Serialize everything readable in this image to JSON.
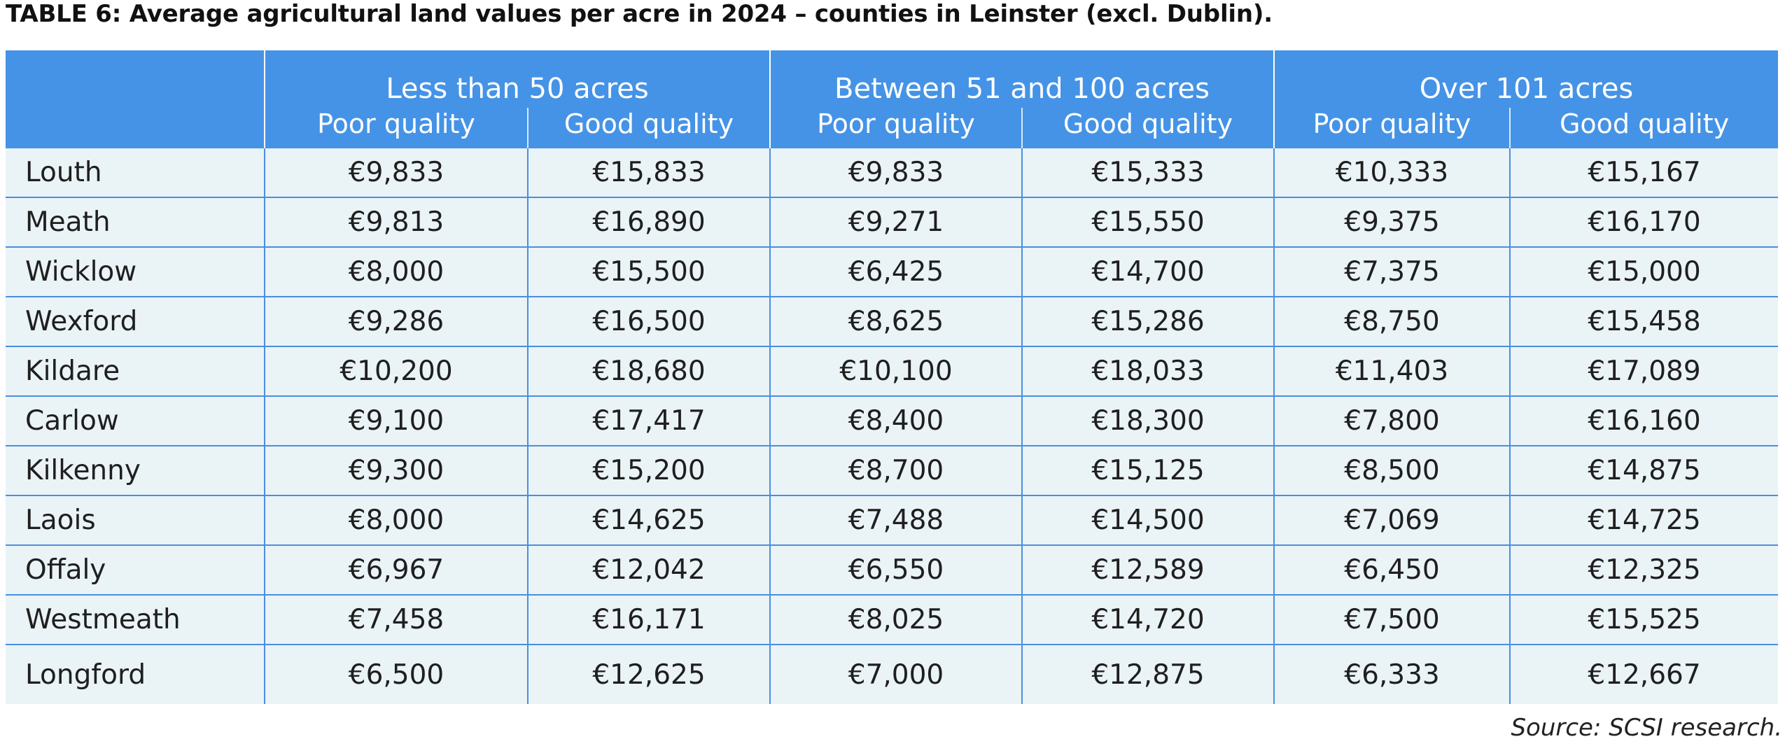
{
  "title": "TABLE 6: Average agricultural land values per acre in 2024 – counties in Leinster (excl. Dublin).",
  "header": {
    "groups": [
      "Less than 50 acres",
      "Between 51 and 100 acres",
      "Over 101 acres"
    ],
    "subcolumns": [
      "Poor quality",
      "Good quality",
      "Poor quality",
      "Good quality",
      "Poor quality",
      "Good quality"
    ]
  },
  "rows": [
    {
      "county": "Louth",
      "values": [
        "€9,833",
        "€15,833",
        "€9,833",
        "€15,333",
        "€10,333",
        "€15,167"
      ]
    },
    {
      "county": "Meath",
      "values": [
        "€9,813",
        "€16,890",
        "€9,271",
        "€15,550",
        "€9,375",
        "€16,170"
      ]
    },
    {
      "county": "Wicklow",
      "values": [
        "€8,000",
        "€15,500",
        "€6,425",
        "€14,700",
        "€7,375",
        "€15,000"
      ]
    },
    {
      "county": "Wexford",
      "values": [
        "€9,286",
        "€16,500",
        "€8,625",
        "€15,286",
        "€8,750",
        "€15,458"
      ]
    },
    {
      "county": "Kildare",
      "values": [
        "€10,200",
        "€18,680",
        "€10,100",
        "€18,033",
        "€11,403",
        "€17,089"
      ]
    },
    {
      "county": "Carlow",
      "values": [
        "€9,100",
        "€17,417",
        "€8,400",
        "€18,300",
        "€7,800",
        "€16,160"
      ]
    },
    {
      "county": "Kilkenny",
      "values": [
        "€9,300",
        "€15,200",
        "€8,700",
        "€15,125",
        "€8,500",
        "€14,875"
      ]
    },
    {
      "county": "Laois",
      "values": [
        "€8,000",
        "€14,625",
        "€7,488",
        "€14,500",
        "€7,069",
        "€14,725"
      ]
    },
    {
      "county": "Offaly",
      "values": [
        "€6,967",
        "€12,042",
        "€6,550",
        "€12,589",
        "€6,450",
        "€12,325"
      ]
    },
    {
      "county": "Westmeath",
      "values": [
        "€7,458",
        "€16,171",
        "€8,025",
        "€14,720",
        "€7,500",
        "€15,525"
      ]
    },
    {
      "county": "Longford",
      "values": [
        "€6,500",
        "€12,625",
        "€7,000",
        "€12,875",
        "€6,333",
        "€12,667"
      ]
    }
  ],
  "source": "Source: SCSI research.",
  "colors": {
    "header_bg": "#4593e6",
    "body_bg": "#eaf3f6",
    "grid": "#4a8ee0"
  }
}
